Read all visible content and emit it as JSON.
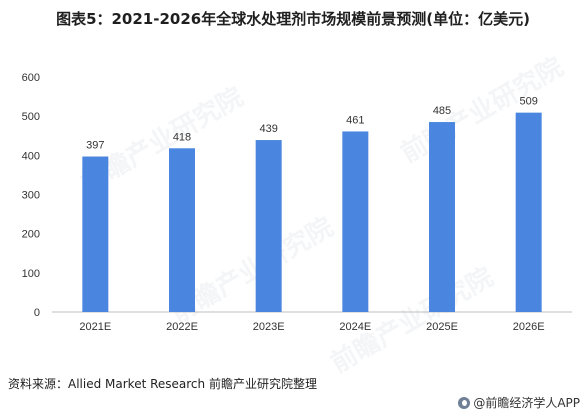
{
  "title": "图表5：2021-2026年全球水处理剂市场规模前景预测(单位：亿美元)",
  "source": "资料来源：Allied Market Research 前瞻产业研究院整理",
  "brand": "@前瞻经济学人APP",
  "watermark": "前瞻产业研究院",
  "colors": {
    "bar": "#4a86e0",
    "axis": "#bfbfbf",
    "text": "#333333"
  },
  "chart_data": {
    "type": "bar",
    "categories": [
      "2021E",
      "2022E",
      "2023E",
      "2024E",
      "2025E",
      "2026E"
    ],
    "values": [
      397,
      418,
      439,
      461,
      485,
      509
    ],
    "yticks": [
      0,
      100,
      200,
      300,
      400,
      500,
      600
    ],
    "ylim": [
      0,
      600
    ],
    "grid": false,
    "legend": "none"
  }
}
